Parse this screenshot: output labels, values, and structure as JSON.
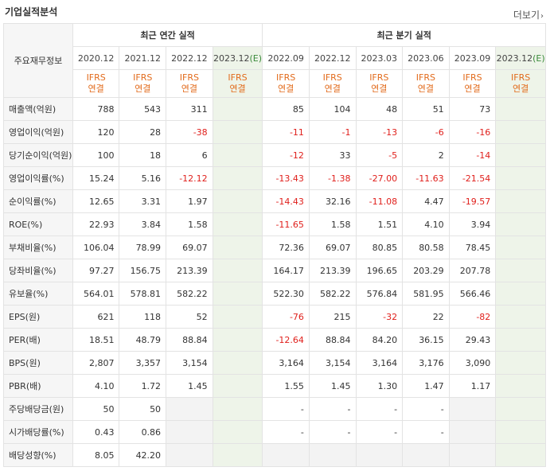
{
  "section_title": "기업실적분석",
  "more_label": "더보기",
  "header": {
    "row_label": "주요재무정보",
    "annual_label": "최근 연간 실적",
    "quarter_label": "최근 분기 실적",
    "annual_periods": [
      "2020.12",
      "2021.12",
      "2022.12",
      "2023.12(E)"
    ],
    "quarter_periods": [
      "2022.09",
      "2022.12",
      "2023.03",
      "2023.06",
      "2023.09",
      "2023.12(E)"
    ],
    "ifrs_line1": "IFRS",
    "ifrs_line2": "연결"
  },
  "rows": [
    {
      "label": "매출액(억원)",
      "annual": [
        "788",
        "543",
        "311",
        ""
      ],
      "quarter": [
        "85",
        "104",
        "48",
        "51",
        "73",
        ""
      ]
    },
    {
      "label": "영업이익(억원)",
      "annual": [
        "120",
        "28",
        "-38",
        ""
      ],
      "quarter": [
        "-11",
        "-1",
        "-13",
        "-6",
        "-16",
        ""
      ]
    },
    {
      "label": "당기순이익(억원)",
      "annual": [
        "100",
        "18",
        "6",
        ""
      ],
      "quarter": [
        "-12",
        "33",
        "-5",
        "2",
        "-14",
        ""
      ]
    },
    {
      "label": "영업이익률(%)",
      "annual": [
        "15.24",
        "5.16",
        "-12.12",
        ""
      ],
      "quarter": [
        "-13.43",
        "-1.38",
        "-27.00",
        "-11.63",
        "-21.54",
        ""
      ]
    },
    {
      "label": "순이익률(%)",
      "annual": [
        "12.65",
        "3.31",
        "1.97",
        ""
      ],
      "quarter": [
        "-14.43",
        "32.16",
        "-11.08",
        "4.47",
        "-19.57",
        ""
      ]
    },
    {
      "label": "ROE(%)",
      "annual": [
        "22.93",
        "3.84",
        "1.58",
        ""
      ],
      "quarter": [
        "-11.65",
        "1.58",
        "1.51",
        "4.10",
        "3.94",
        ""
      ]
    },
    {
      "label": "부채비율(%)",
      "annual": [
        "106.04",
        "78.99",
        "69.07",
        ""
      ],
      "quarter": [
        "72.36",
        "69.07",
        "80.85",
        "80.58",
        "78.45",
        ""
      ]
    },
    {
      "label": "당좌비율(%)",
      "annual": [
        "97.27",
        "156.75",
        "213.39",
        ""
      ],
      "quarter": [
        "164.17",
        "213.39",
        "196.65",
        "203.29",
        "207.78",
        ""
      ]
    },
    {
      "label": "유보율(%)",
      "annual": [
        "564.01",
        "578.81",
        "582.22",
        ""
      ],
      "quarter": [
        "522.30",
        "582.22",
        "576.84",
        "581.95",
        "566.46",
        ""
      ]
    },
    {
      "label": "EPS(원)",
      "annual": [
        "621",
        "118",
        "52",
        ""
      ],
      "quarter": [
        "-76",
        "215",
        "-32",
        "22",
        "-82",
        ""
      ]
    },
    {
      "label": "PER(배)",
      "annual": [
        "18.51",
        "48.79",
        "88.84",
        ""
      ],
      "quarter": [
        "-12.64",
        "88.84",
        "84.20",
        "36.15",
        "29.43",
        ""
      ]
    },
    {
      "label": "BPS(원)",
      "annual": [
        "2,807",
        "3,357",
        "3,154",
        ""
      ],
      "quarter": [
        "3,164",
        "3,154",
        "3,164",
        "3,176",
        "3,090",
        ""
      ]
    },
    {
      "label": "PBR(배)",
      "annual": [
        "4.10",
        "1.72",
        "1.45",
        ""
      ],
      "quarter": [
        "1.55",
        "1.45",
        "1.30",
        "1.47",
        "1.17",
        ""
      ]
    },
    {
      "label": "주당배당금(원)",
      "annual": [
        "50",
        "50",
        "",
        ""
      ],
      "quarter": [
        "-",
        "-",
        "-",
        "-",
        "",
        ""
      ]
    },
    {
      "label": "시가배당률(%)",
      "annual": [
        "0.43",
        "0.86",
        "",
        ""
      ],
      "quarter": [
        "-",
        "-",
        "-",
        "-",
        "",
        ""
      ]
    },
    {
      "label": "배당성향(%)",
      "annual": [
        "8.05",
        "42.20",
        "",
        ""
      ],
      "quarter": [
        "",
        "",
        "",
        "",
        "",
        ""
      ]
    }
  ],
  "colors": {
    "negative": "#e0201c",
    "ifrs": "#e26b1c",
    "estimate_bg": "#eef4e9"
  }
}
